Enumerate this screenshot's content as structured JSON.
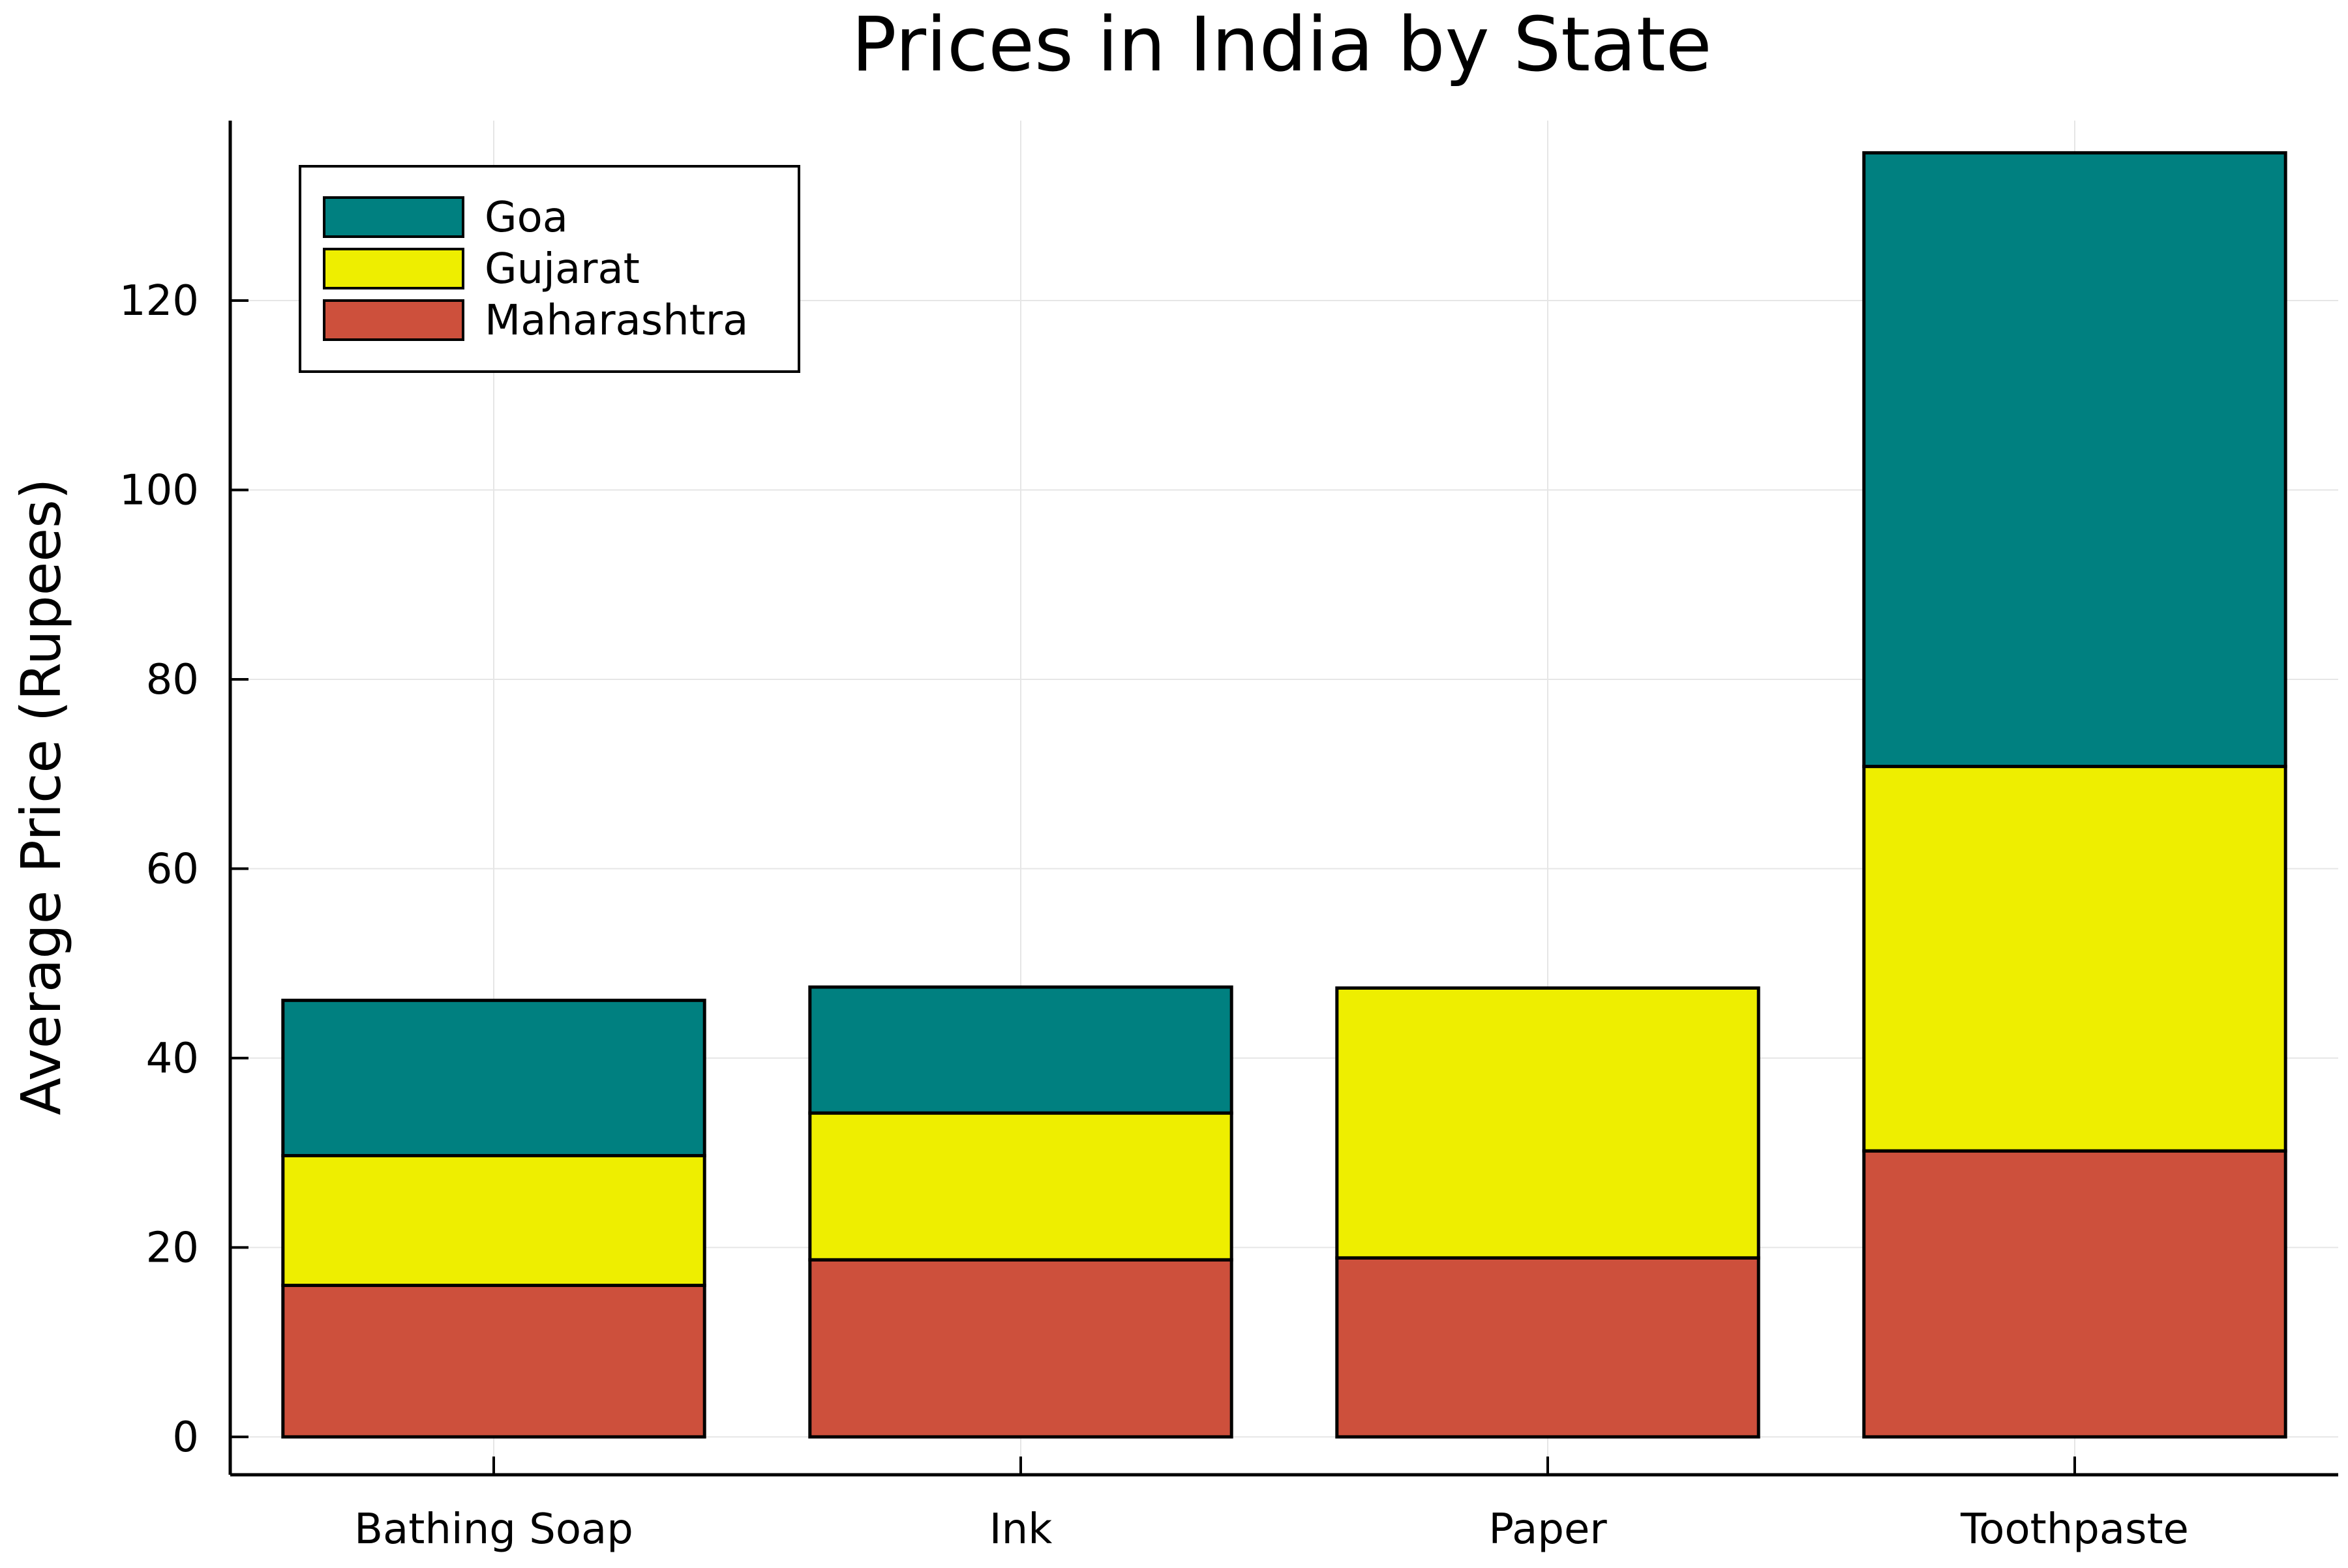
{
  "chart_data": {
    "type": "bar",
    "stacked": true,
    "title": "Prices in India by State",
    "xlabel": "",
    "ylabel": "Average Price (Rupees)",
    "categories": [
      "Bathing Soap",
      "Ink",
      "Paper",
      "Toothpaste"
    ],
    "series": [
      {
        "name": "Maharashtra",
        "color": "#cd503c",
        "values": [
          16.0,
          18.7,
          18.9,
          30.2
        ]
      },
      {
        "name": "Gujarat",
        "color": "#eeee00",
        "values": [
          13.7,
          15.5,
          28.5,
          40.6
        ]
      },
      {
        "name": "Goa",
        "color": "#008080",
        "values": [
          16.4,
          13.3,
          0,
          64.8
        ]
      }
    ],
    "legend_order": [
      "Goa",
      "Gujarat",
      "Maharashtra"
    ],
    "yticks": [
      0,
      20,
      40,
      60,
      80,
      100,
      120
    ],
    "ylim": [
      -4,
      139
    ],
    "grid": true,
    "legend_position": "top-left"
  }
}
